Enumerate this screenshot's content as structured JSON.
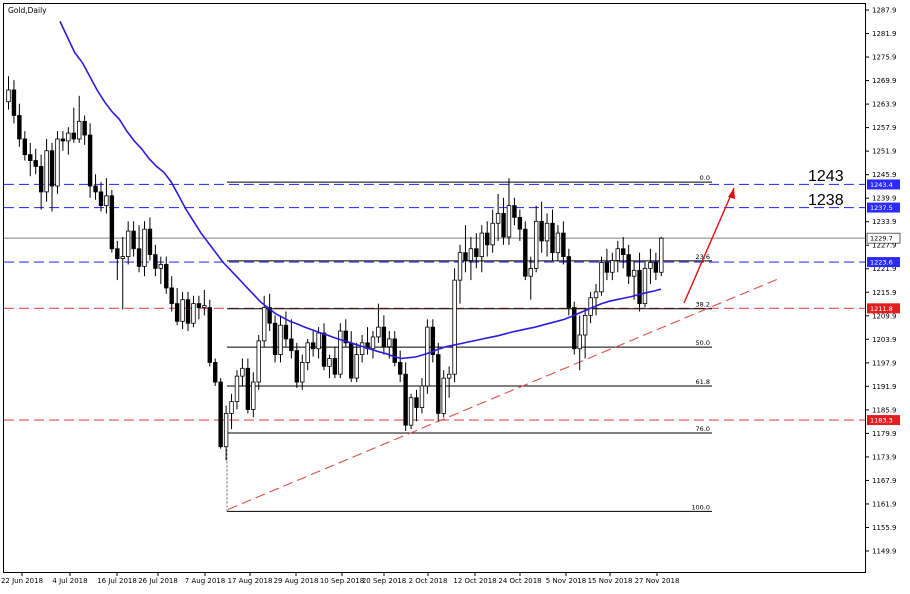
{
  "chart_data": {
    "type": "candlestick",
    "title": "Gold,Daily",
    "x_tick_labels": [
      "22 Jun 2018",
      "4 Jul 2018",
      "16 Jul 2018",
      "26 Jul 2018",
      "7 Aug 2018",
      "17 Aug 2018",
      "29 Aug 2018",
      "10 Sep 2018",
      "20 Sep 2018",
      "2 Oct 2018",
      "12 Oct 2018",
      "24 Oct 2018",
      "5 Nov 2018",
      "15 Nov 2018",
      "27 Nov 2018"
    ],
    "y_tick_labels": [
      "1287.9",
      "1281.9",
      "1275.9",
      "1269.9",
      "1263.9",
      "1257.9",
      "1251.9",
      "1245.9",
      "1239.9",
      "1233.9",
      "1227.9",
      "1221.9",
      "1215.9",
      "1209.9",
      "1203.9",
      "1197.9",
      "1191.9",
      "1185.9",
      "1179.9",
      "1173.9",
      "1167.9",
      "1161.9",
      "1155.9",
      "1149.9"
    ],
    "ylim": [
      1147.0,
      1289.0
    ],
    "key_levels": [
      {
        "name": "1243",
        "value": 1243.4,
        "badge": "1243.4",
        "color": "#3b3bff",
        "style": "dashed"
      },
      {
        "name": "1238",
        "value": 1237.5,
        "badge": "1237.5",
        "color": "#3b3bff",
        "style": "dashed"
      },
      {
        "name": "",
        "value": 1223.6,
        "badge": "1223.6",
        "color": "#3b3bff",
        "style": "dashed"
      },
      {
        "name": "",
        "value": 1211.8,
        "badge": "1211.8",
        "color": "#e05050",
        "style": "dashed"
      },
      {
        "name": "",
        "value": 1183.3,
        "badge": "1183.3",
        "color": "#e05050",
        "style": "dashed"
      }
    ],
    "current_price": {
      "value": 1229.7,
      "badge": "1229.7"
    },
    "annotations": {
      "level_1243": "1243",
      "level_1238": "1238"
    },
    "fibonacci": [
      {
        "label": "0.0",
        "value": 1244.0
      },
      {
        "label": "23.6",
        "value": 1223.9
      },
      {
        "label": "38.2",
        "value": 1211.7
      },
      {
        "label": "50.0",
        "value": 1201.9
      },
      {
        "label": "61.8",
        "value": 1192.0
      },
      {
        "label": "76.0",
        "value": 1180.0
      },
      {
        "label": "100.0",
        "value": 1160.0
      }
    ],
    "ohlc": [
      [
        1264.5,
        1271.0,
        1262.5,
        1267.5
      ],
      [
        1267.5,
        1270.0,
        1259.0,
        1261.0
      ],
      [
        1261.0,
        1264.0,
        1253.0,
        1255.0
      ],
      [
        1255.0,
        1257.0,
        1249.5,
        1251.0
      ],
      [
        1251.0,
        1254.0,
        1245.5,
        1249.5
      ],
      [
        1249.5,
        1252.5,
        1246.0,
        1248.0
      ],
      [
        1248.0,
        1251.0,
        1237.0,
        1241.5
      ],
      [
        1241.5,
        1255.0,
        1239.0,
        1252.0
      ],
      [
        1252.0,
        1254.0,
        1236.5,
        1243.0
      ],
      [
        1243.0,
        1257.0,
        1241.0,
        1255.0
      ],
      [
        1255.0,
        1257.0,
        1252.0,
        1254.5
      ],
      [
        1254.5,
        1258.0,
        1251.0,
        1256.5
      ],
      [
        1256.5,
        1263.0,
        1254.0,
        1255.0
      ],
      [
        1255.0,
        1266.0,
        1254.0,
        1259.5
      ],
      [
        1259.5,
        1261.0,
        1253.5,
        1256.0
      ],
      [
        1256.0,
        1259.0,
        1240.0,
        1243.0
      ],
      [
        1243.0,
        1246.0,
        1239.5,
        1241.5
      ],
      [
        1241.5,
        1244.0,
        1236.5,
        1238.0
      ],
      [
        1238.0,
        1245.0,
        1236.0,
        1240.5
      ],
      [
        1240.5,
        1242.0,
        1226.0,
        1227.0
      ],
      [
        1227.0,
        1229.0,
        1219.0,
        1224.5
      ],
      [
        1224.5,
        1230.0,
        1211.5,
        1225.0
      ],
      [
        1225.0,
        1234.0,
        1223.0,
        1231.5
      ],
      [
        1231.5,
        1234.0,
        1225.0,
        1227.0
      ],
      [
        1227.0,
        1233.0,
        1221.0,
        1222.5
      ],
      [
        1222.5,
        1234.0,
        1220.0,
        1232.0
      ],
      [
        1232.0,
        1235.0,
        1224.0,
        1225.5
      ],
      [
        1225.5,
        1228.0,
        1220.0,
        1222.0
      ],
      [
        1222.0,
        1225.0,
        1218.0,
        1223.0
      ],
      [
        1223.0,
        1225.0,
        1215.5,
        1217.0
      ],
      [
        1217.0,
        1220.0,
        1211.0,
        1213.0
      ],
      [
        1213.0,
        1217.0,
        1207.5,
        1208.5
      ],
      [
        1208.5,
        1216.0,
        1206.5,
        1214.0
      ],
      [
        1214.0,
        1216.0,
        1206.0,
        1208.0
      ],
      [
        1208.0,
        1215.0,
        1207.0,
        1213.0
      ],
      [
        1213.0,
        1215.0,
        1209.0,
        1212.0
      ],
      [
        1212.0,
        1216.5,
        1210.0,
        1212.5
      ],
      [
        1212.0,
        1214.0,
        1197.0,
        1198.0
      ],
      [
        1198.0,
        1199.0,
        1192.0,
        1193.0
      ],
      [
        1193.0,
        1194.0,
        1176.0,
        1176.5
      ],
      [
        1176.5,
        1187.0,
        1173.0,
        1185.0
      ],
      [
        1185.0,
        1190.0,
        1181.0,
        1188.0
      ],
      [
        1188.0,
        1196.0,
        1186.0,
        1194.5
      ],
      [
        1194.5,
        1199.0,
        1192.0,
        1196.5
      ],
      [
        1196.5,
        1199.0,
        1185.0,
        1186.0
      ],
      [
        1186.0,
        1195.5,
        1184.0,
        1193.0
      ],
      [
        1193.0,
        1205.0,
        1191.0,
        1203.5
      ],
      [
        1203.5,
        1215.0,
        1202.0,
        1212.0
      ],
      [
        1212.0,
        1215.5,
        1206.0,
        1208.0
      ],
      [
        1208.0,
        1210.0,
        1198.0,
        1200.0
      ],
      [
        1200.0,
        1210.0,
        1198.0,
        1207.5
      ],
      [
        1207.5,
        1211.0,
        1202.0,
        1204.0
      ],
      [
        1204.0,
        1209.0,
        1199.0,
        1201.0
      ],
      [
        1201.0,
        1203.0,
        1191.5,
        1193.0
      ],
      [
        1193.0,
        1200.0,
        1191.0,
        1198.0
      ],
      [
        1198.0,
        1204.0,
        1196.0,
        1203.0
      ],
      [
        1203.0,
        1206.0,
        1199.5,
        1201.5
      ],
      [
        1201.5,
        1207.0,
        1199.0,
        1205.5
      ],
      [
        1205.5,
        1208.0,
        1196.0,
        1197.0
      ],
      [
        1197.0,
        1200.0,
        1194.0,
        1199.0
      ],
      [
        1199.0,
        1202.0,
        1194.0,
        1195.0
      ],
      [
        1195.0,
        1208.0,
        1194.0,
        1206.0
      ],
      [
        1206.0,
        1209.0,
        1202.0,
        1203.0
      ],
      [
        1203.0,
        1206.0,
        1193.0,
        1194.0
      ],
      [
        1194.0,
        1203.0,
        1193.0,
        1200.0
      ],
      [
        1200.0,
        1205.0,
        1198.0,
        1203.0
      ],
      [
        1203.0,
        1207.0,
        1200.0,
        1201.5
      ],
      [
        1201.5,
        1206.0,
        1199.0,
        1204.5
      ],
      [
        1204.5,
        1213.0,
        1203.0,
        1207.0
      ],
      [
        1207.0,
        1210.0,
        1200.0,
        1202.0
      ],
      [
        1202.0,
        1206.0,
        1199.0,
        1204.0
      ],
      [
        1204.0,
        1206.0,
        1197.0,
        1198.0
      ],
      [
        1198.0,
        1201.0,
        1193.0,
        1195.0
      ],
      [
        1195.0,
        1198.0,
        1180.5,
        1182.0
      ],
      [
        1182.0,
        1190.0,
        1181.0,
        1189.0
      ],
      [
        1189.0,
        1191.0,
        1183.0,
        1186.5
      ],
      [
        1186.5,
        1194.0,
        1185.0,
        1192.0
      ],
      [
        1192.0,
        1209.0,
        1190.0,
        1207.0
      ],
      [
        1207.0,
        1209.0,
        1198.0,
        1200.0
      ],
      [
        1200.0,
        1203.0,
        1183.0,
        1185.0
      ],
      [
        1185.0,
        1196.0,
        1184.0,
        1194.0
      ],
      [
        1194.0,
        1197.0,
        1189.0,
        1195.0
      ],
      [
        1195.0,
        1222.0,
        1193.0,
        1219.0
      ],
      [
        1219.0,
        1228.0,
        1213.0,
        1226.0
      ],
      [
        1226.0,
        1233.0,
        1221.0,
        1224.0
      ],
      [
        1224.0,
        1230.0,
        1219.0,
        1227.0
      ],
      [
        1227.0,
        1231.0,
        1222.0,
        1225.0
      ],
      [
        1225.0,
        1233.0,
        1221.0,
        1231.0
      ],
      [
        1231.0,
        1234.0,
        1225.0,
        1228.0
      ],
      [
        1228.0,
        1237.0,
        1226.0,
        1233.5
      ],
      [
        1233.5,
        1241.0,
        1229.0,
        1236.0
      ],
      [
        1236.0,
        1240.0,
        1228.0,
        1230.0
      ],
      [
        1230.0,
        1245.0,
        1228.0,
        1238.0
      ],
      [
        1238.0,
        1240.0,
        1233.0,
        1235.0
      ],
      [
        1235.0,
        1237.0,
        1229.0,
        1232.0
      ],
      [
        1232.0,
        1234.0,
        1219.0,
        1220.0
      ],
      [
        1220.0,
        1225.0,
        1214.0,
        1222.0
      ],
      [
        1222.0,
        1238.0,
        1221.0,
        1234.0
      ],
      [
        1234.0,
        1239.0,
        1226.0,
        1229.0
      ],
      [
        1229.0,
        1236.0,
        1225.0,
        1233.5
      ],
      [
        1233.5,
        1237.0,
        1224.0,
        1226.0
      ],
      [
        1226.0,
        1233.0,
        1224.0,
        1231.0
      ],
      [
        1231.0,
        1234.0,
        1223.0,
        1225.0
      ],
      [
        1225.0,
        1227.0,
        1210.0,
        1212.0
      ],
      [
        1212.0,
        1213.5,
        1200.0,
        1201.5
      ],
      [
        1201.5,
        1210.0,
        1196.0,
        1205.0
      ],
      [
        1205.0,
        1212.0,
        1199.0,
        1210.0
      ],
      [
        1210.0,
        1216.0,
        1208.0,
        1214.5
      ],
      [
        1214.5,
        1218.0,
        1210.0,
        1216.0
      ],
      [
        1216.0,
        1225.0,
        1215.0,
        1223.5
      ],
      [
        1223.5,
        1227.0,
        1219.0,
        1221.0
      ],
      [
        1221.0,
        1226.0,
        1219.0,
        1224.0
      ],
      [
        1224.0,
        1229.0,
        1221.0,
        1227.0
      ],
      [
        1227.0,
        1230.0,
        1222.0,
        1225.5
      ],
      [
        1225.5,
        1228.0,
        1218.0,
        1220.0
      ],
      [
        1220.0,
        1224.0,
        1214.0,
        1221.5
      ],
      [
        1221.5,
        1226.0,
        1211.0,
        1213.0
      ],
      [
        1213.0,
        1224.0,
        1212.0,
        1222.0
      ],
      [
        1222.0,
        1227.0,
        1218.0,
        1223.5
      ],
      [
        1223.5,
        1226.0,
        1219.0,
        1221.0
      ],
      [
        1221.0,
        1230.0,
        1220.0,
        1229.7
      ]
    ],
    "moving_average": {
      "color": "#2b1be0",
      "values": [
        1285.0,
        1281.0,
        1277.0,
        1274.5,
        1271.0,
        1267.5,
        1264.5,
        1262.0,
        1260.0,
        1257.0,
        1254.5,
        1252.5,
        1250.0,
        1248.0,
        1246.5,
        1244.0,
        1240.5,
        1237.0,
        1234.0,
        1231.0,
        1228.5,
        1226.0,
        1223.5,
        1221.5,
        1219.5,
        1217.5,
        1215.5,
        1213.5,
        1212.0,
        1210.5,
        1209.5,
        1208.5,
        1207.8,
        1207.0,
        1206.3,
        1205.6,
        1205.0,
        1204.3,
        1203.7,
        1203.1,
        1202.5,
        1201.9,
        1201.3,
        1200.7,
        1200.2,
        1199.5,
        1199.0,
        1199.2,
        1199.4,
        1200.0,
        1200.6,
        1201.4,
        1202.0,
        1202.4,
        1202.8,
        1203.2,
        1203.6,
        1204.0,
        1204.4,
        1204.8,
        1205.3,
        1205.8,
        1206.2,
        1206.6,
        1207.0,
        1207.5,
        1208.0,
        1208.5,
        1209.0,
        1209.8,
        1210.6,
        1211.4,
        1212.2,
        1213.0,
        1213.6,
        1214.0,
        1214.4,
        1214.8,
        1215.3,
        1215.8,
        1216.2,
        1216.7
      ],
      "start_index": 0
    }
  }
}
